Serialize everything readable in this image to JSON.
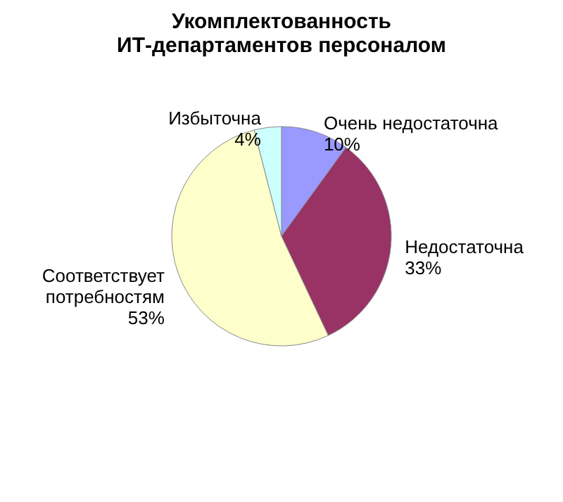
{
  "chart_data": {
    "type": "pie",
    "title": "Укомплектованность ИТ-департаментов персоналом",
    "categories": [
      "Очень недостаточна",
      "Недостаточна",
      "Соответствует потребностям",
      "Избыточна"
    ],
    "values": [
      10,
      33,
      53,
      4
    ],
    "colors": [
      "#9999ff",
      "#993366",
      "#ffffcc",
      "#ccffff"
    ],
    "value_labels": [
      "10%",
      "33%",
      "53%",
      "4%"
    ]
  }
}
